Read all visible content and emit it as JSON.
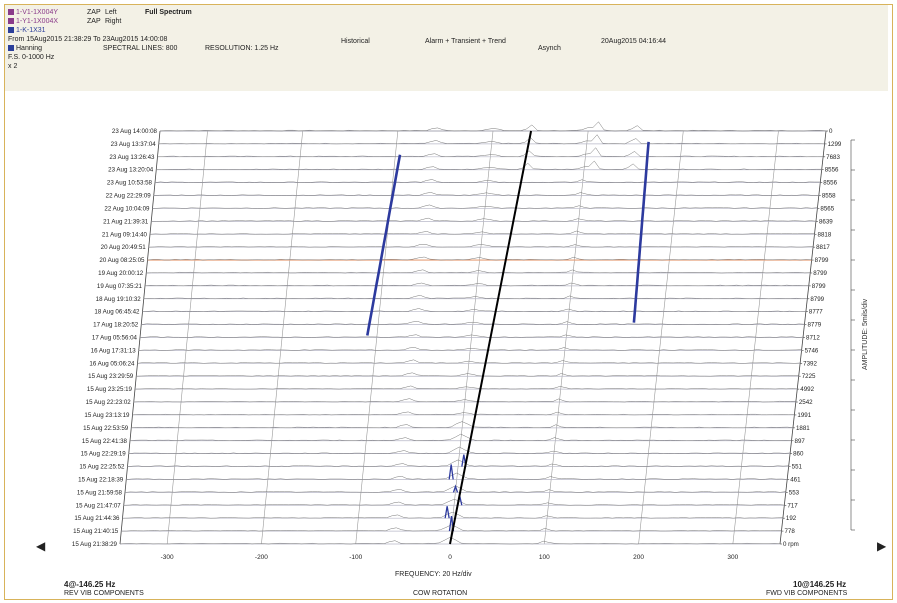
{
  "header": {
    "traces": [
      {
        "label": "1-V1-1X004Y",
        "color": "#8a3b8a"
      },
      {
        "label": "1-Y1-1X004X",
        "color": "#8a3b8a"
      },
      {
        "label": "1-K-1X31",
        "color": "#2c3f9a"
      }
    ],
    "channel_codes": [
      "ZAP",
      "ZAP"
    ],
    "channel_sides": [
      "Left",
      "Right"
    ],
    "plot_kind": "Full Spectrum",
    "time_range": "From 15Aug2015 21:38:29 To 23Aug2015 14:00:08",
    "mode": "Historical",
    "data_type": "Alarm + Transient + Trend",
    "timestamp": "20Aug2015 04:16:44",
    "window": "Hanning",
    "spectral_lines": "SPECTRAL LINES: 800",
    "resolution": "RESOLUTION: 1.25 Hz",
    "sync": "Asynch",
    "fs": "F.S. 0-1000 Hz",
    "scale": "x 2",
    "window_color": "#2c3f9a"
  },
  "chart_data": {
    "type": "waterfall",
    "xlabel": "FREQUENCY: 20 Hz/div",
    "xticks": [
      -300,
      -200,
      -100,
      0,
      100,
      200,
      300
    ],
    "xlim": [
      -350,
      350
    ],
    "times": [
      "23 Aug 14:00:08",
      "23 Aug 13:37:04",
      "23 Aug 13:26:43",
      "23 Aug 13:20:04",
      "23 Aug 10:53:58",
      "22 Aug 22:29:09",
      "22 Aug 10:04:09",
      "21 Aug 21:39:31",
      "21 Aug 09:14:40",
      "20 Aug 20:49:51",
      "20 Aug 08:25:05",
      "19 Aug 20:00:12",
      "19 Aug 07:35:21",
      "18 Aug 19:10:32",
      "18 Aug 06:45:42",
      "17 Aug 18:20:52",
      "17 Aug 05:56:04",
      "16 Aug 17:31:13",
      "16 Aug 05:06:24",
      "15 Aug 23:29:59",
      "15 Aug 23:25:19",
      "15 Aug 22:23:02",
      "15 Aug 23:13:19",
      "15 Aug 22:53:59",
      "15 Aug 22:41:38",
      "15 Aug 22:29:19",
      "15 Aug 22:25:52",
      "15 Aug 22:18:39",
      "15 Aug 21:59:58",
      "15 Aug 21:47:07",
      "15 Aug 21:44:36",
      "15 Aug 21:40:15",
      "15 Aug 21:38:29"
    ],
    "rpm": [
      "0",
      "1299",
      "7683",
      "8556",
      "8556",
      "8558",
      "8565",
      "8639",
      "8818",
      "8817",
      "8799",
      "8799",
      "8799",
      "8799",
      "8777",
      "8779",
      "8712",
      "5746",
      "7392",
      "7225",
      "4992",
      "2542",
      "1991",
      "1881",
      "897",
      "860",
      "551",
      "461",
      "553",
      "717",
      "192",
      "778",
      "0 rpm"
    ],
    "rpm_unit": "rpm",
    "highlight_row": 10,
    "series": [
      {
        "name": "1X",
        "color": "#000000"
      }
    ],
    "rev_label": "REV VIB COMPONENTS",
    "fwd_label": "FWD VIB COMPONENTS",
    "center_label": "COW ROTATION",
    "left_cursor": "4@-146.25 Hz",
    "right_cursor": "10@146.25 Hz",
    "y_title": "AMPLITUDE: 5mils/div",
    "band_color": "#2d3a9e",
    "highlight_color": "#e6a07a"
  }
}
